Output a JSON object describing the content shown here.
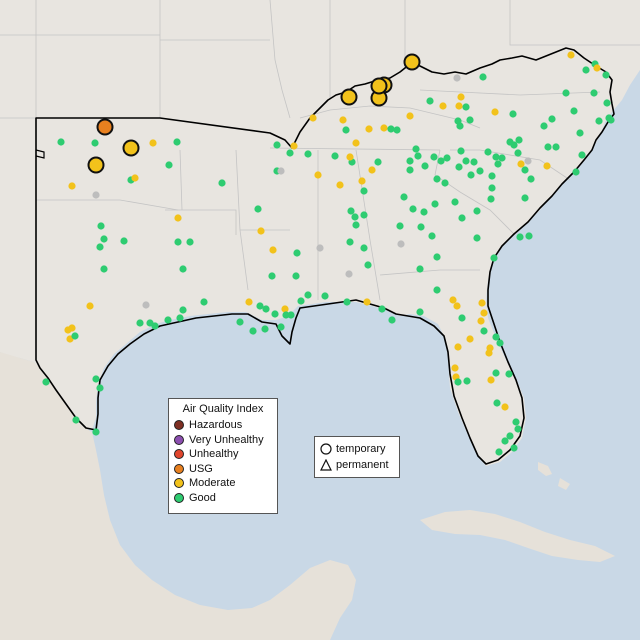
{
  "legend": {
    "title": "Air Quality Index",
    "items": [
      {
        "label": "Hazardous",
        "color": "#7e2f23"
      },
      {
        "label": "Very Unhealthy",
        "color": "#8c4fb0"
      },
      {
        "label": "Unhealthy",
        "color": "#e0452c"
      },
      {
        "label": "USG",
        "color": "#e8801f"
      },
      {
        "label": "Moderate",
        "color": "#f2c21b"
      },
      {
        "label": "Good",
        "color": "#2ecc71"
      }
    ]
  },
  "monitor_types": [
    {
      "label": "temporary",
      "icon": "circle-icon"
    },
    {
      "label": "permanent",
      "icon": "triangle-icon"
    }
  ],
  "colors": {
    "water": "#c9d8e6",
    "land": "#e8e5e0",
    "no_data": "#bdbdbd"
  }
}
